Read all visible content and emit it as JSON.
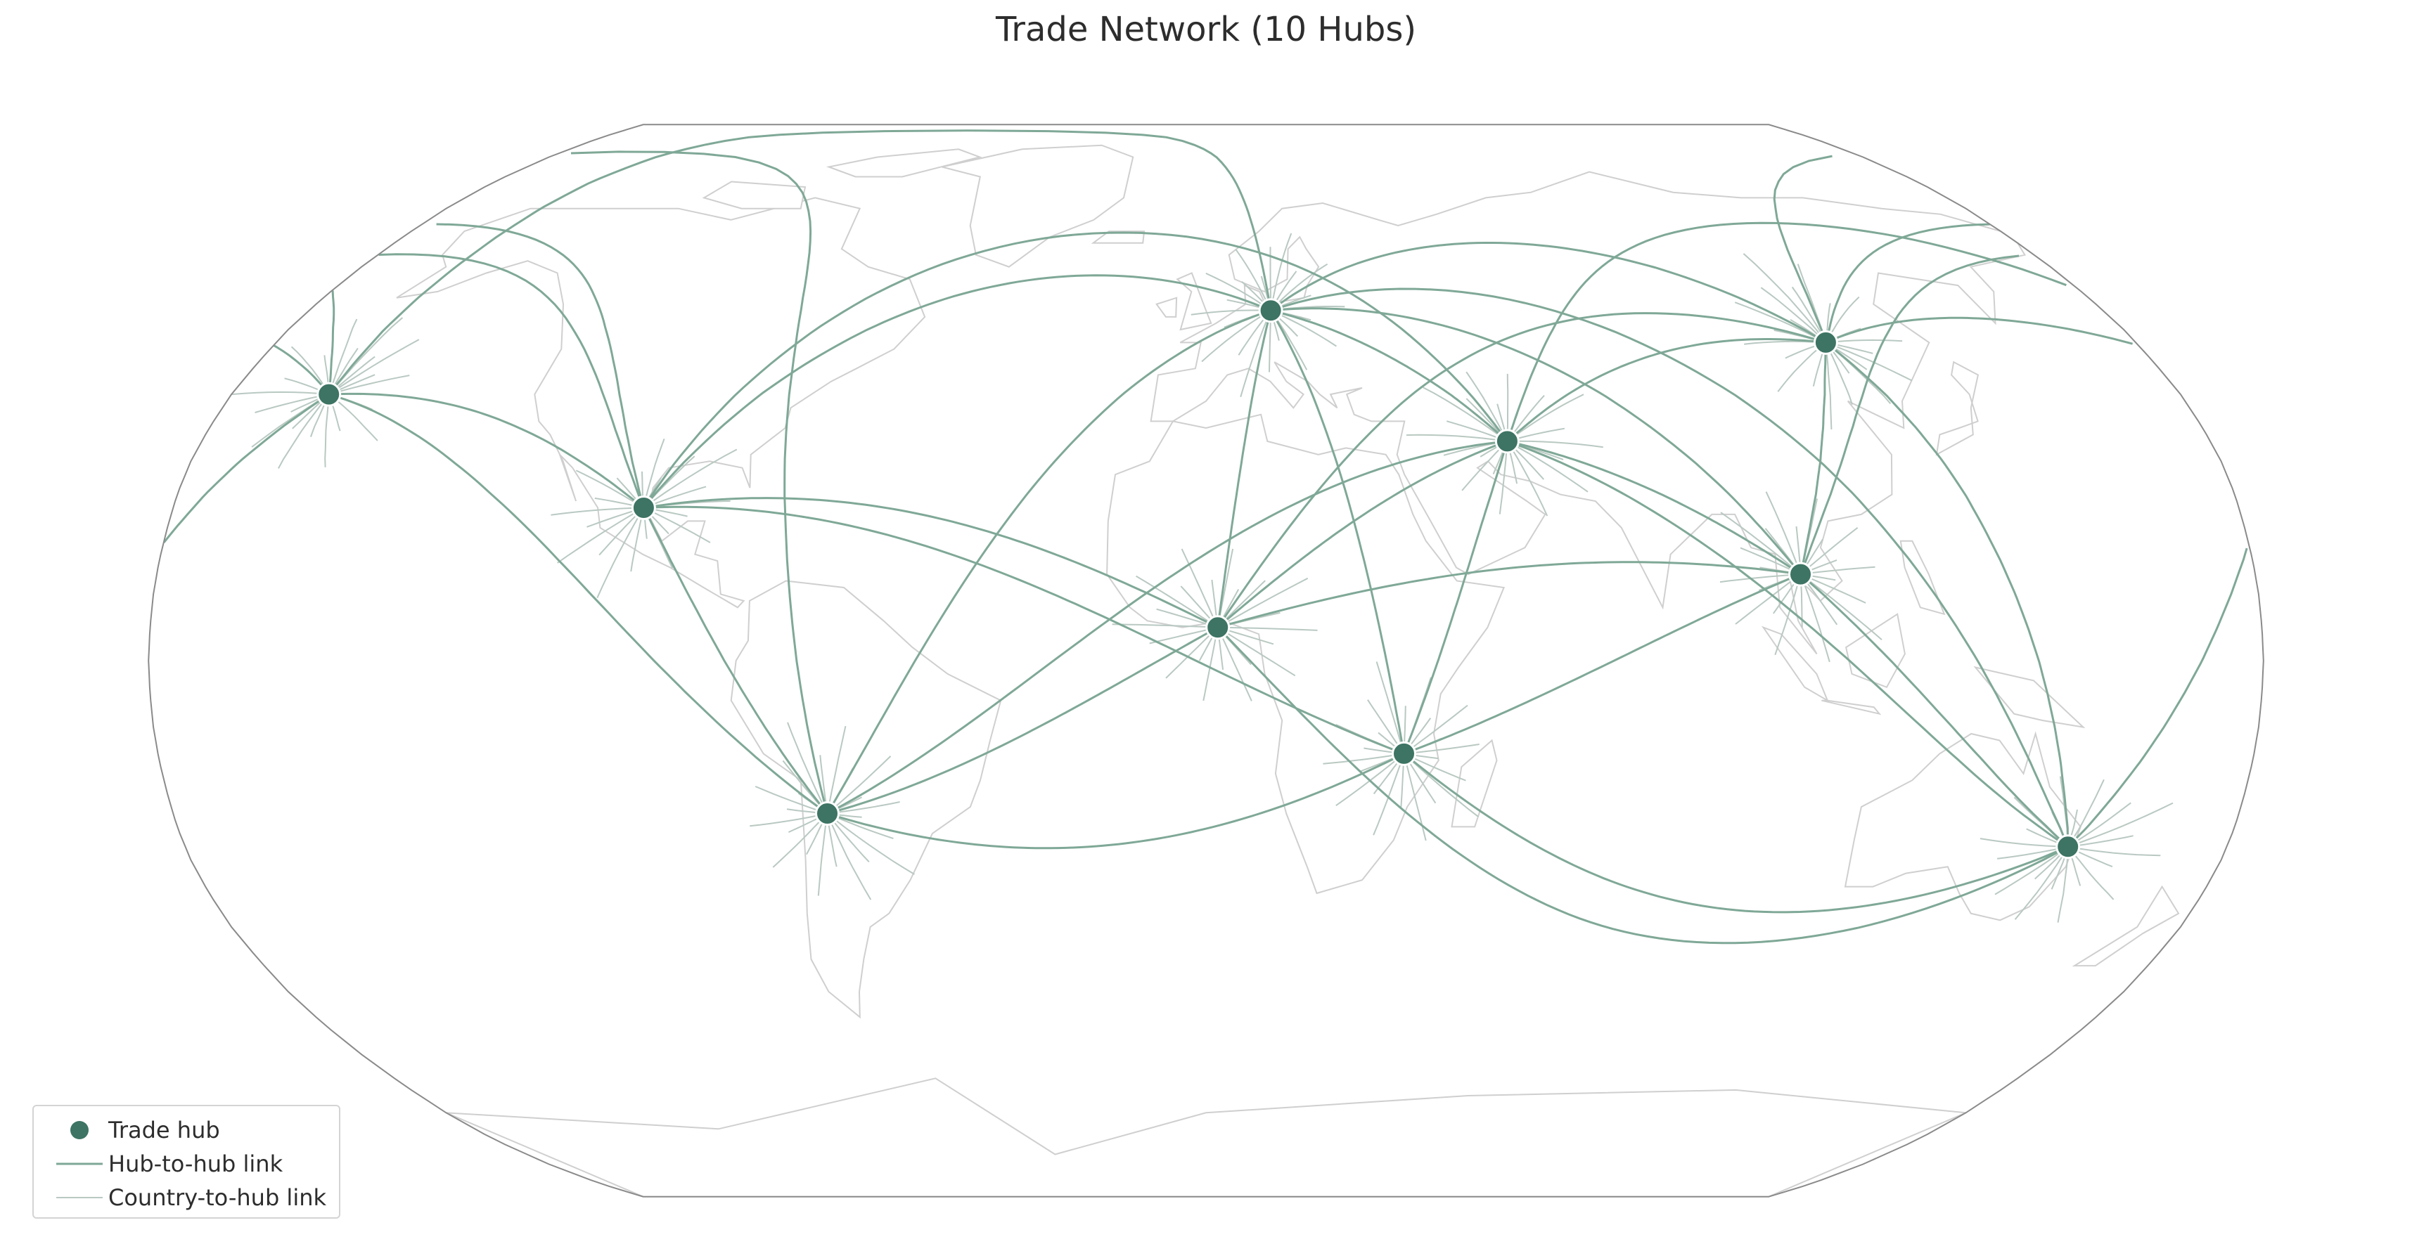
{
  "title": "Trade Network (10 Hubs)",
  "colors": {
    "hub": "#3d7463",
    "hub_link": "#7fa897",
    "country_link": "#b9c9c2",
    "coastline": "#cfcfcf",
    "border": "#d9d9d9",
    "frame": "#8a8a8a"
  },
  "map": {
    "projection": "Robinson",
    "basemap": "country borders and coastlines, light gray"
  },
  "legend": {
    "position": "lower-left",
    "items": [
      {
        "symbol": "circle",
        "label": "Trade hub"
      },
      {
        "symbol": "line-hub",
        "label": "Hub-to-hub link"
      },
      {
        "symbol": "line-country",
        "label": "Country-to-hub link"
      }
    ]
  },
  "hubs": [
    {
      "id": "north-pacific",
      "lon": -162,
      "lat": 40
    },
    {
      "id": "north-america",
      "lon": -98,
      "lat": 23
    },
    {
      "id": "south-america",
      "lon": -66,
      "lat": -23
    },
    {
      "id": "west-africa",
      "lon": 2,
      "lat": 5
    },
    {
      "id": "europe",
      "lon": 13,
      "lat": 53
    },
    {
      "id": "southern-africa",
      "lon": 34,
      "lat": -14
    },
    {
      "id": "central-asia",
      "lon": 54,
      "lat": 33
    },
    {
      "id": "east-asia",
      "lon": 120,
      "lat": 48
    },
    {
      "id": "south-asia",
      "lon": 102,
      "lat": 13
    },
    {
      "id": "oceania",
      "lon": 152,
      "lat": -28
    }
  ],
  "hub_links": [
    [
      "north-pacific",
      "north-america"
    ],
    [
      "north-pacific",
      "south-america"
    ],
    [
      "north-pacific",
      "europe"
    ],
    [
      "north-pacific",
      "east-asia"
    ],
    [
      "north-pacific",
      "oceania"
    ],
    [
      "north-pacific",
      "central-asia"
    ],
    [
      "north-america",
      "south-america"
    ],
    [
      "north-america",
      "west-africa"
    ],
    [
      "north-america",
      "europe"
    ],
    [
      "north-america",
      "east-asia"
    ],
    [
      "north-america",
      "central-asia"
    ],
    [
      "north-america",
      "south-asia"
    ],
    [
      "north-america",
      "southern-africa"
    ],
    [
      "south-america",
      "west-africa"
    ],
    [
      "south-america",
      "europe"
    ],
    [
      "south-america",
      "southern-africa"
    ],
    [
      "south-america",
      "central-asia"
    ],
    [
      "south-america",
      "east-asia"
    ],
    [
      "west-africa",
      "europe"
    ],
    [
      "west-africa",
      "central-asia"
    ],
    [
      "west-africa",
      "south-asia"
    ],
    [
      "west-africa",
      "oceania"
    ],
    [
      "west-africa",
      "east-asia"
    ],
    [
      "europe",
      "central-asia"
    ],
    [
      "europe",
      "east-asia"
    ],
    [
      "europe",
      "south-asia"
    ],
    [
      "europe",
      "southern-africa"
    ],
    [
      "europe",
      "oceania"
    ],
    [
      "southern-africa",
      "central-asia"
    ],
    [
      "southern-africa",
      "south-asia"
    ],
    [
      "southern-africa",
      "oceania"
    ],
    [
      "central-asia",
      "east-asia"
    ],
    [
      "central-asia",
      "south-asia"
    ],
    [
      "central-asia",
      "oceania"
    ],
    [
      "east-asia",
      "south-asia"
    ],
    [
      "east-asia",
      "oceania"
    ],
    [
      "south-asia",
      "oceania"
    ]
  ]
}
